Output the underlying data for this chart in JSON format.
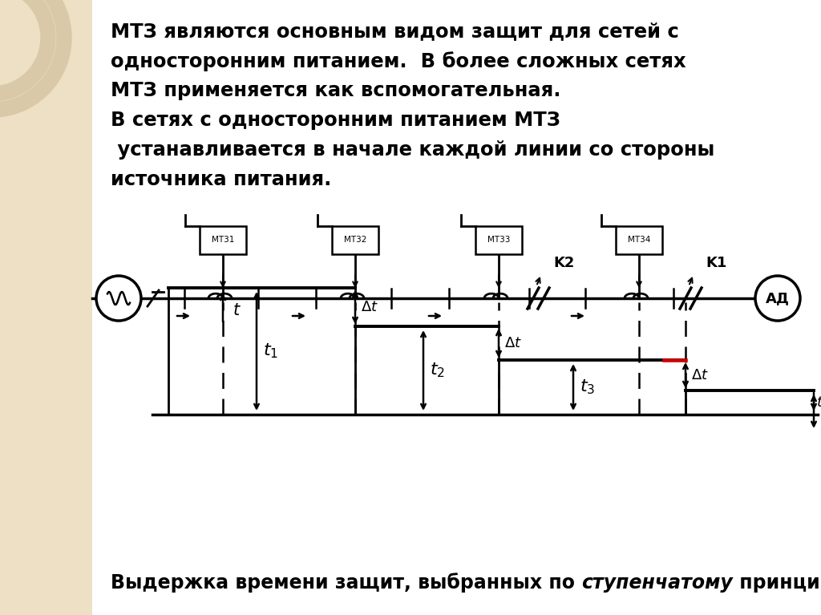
{
  "bg_color": "#ffffff",
  "left_panel_color": "#ede0c4",
  "text_lines": [
    "МТЗ являются основным видом защит для сетей с",
    "односторонним питанием.  В более сложных сетях",
    "МТЗ применяется как вспомогательная.",
    "В сетях с односторонним питанием МТЗ",
    " устанавливается в начале каждой линии со стороны",
    "источника питания."
  ],
  "footer_normal1": "Выдержка времени защит, выбранных по ",
  "footer_italic": "ступенчатому",
  "footer_normal2": " принципу",
  "relay_labels": [
    "MT31",
    "MT32",
    "MT33",
    "MT34"
  ],
  "line_color": "#000000",
  "red_color": "#cc0000"
}
